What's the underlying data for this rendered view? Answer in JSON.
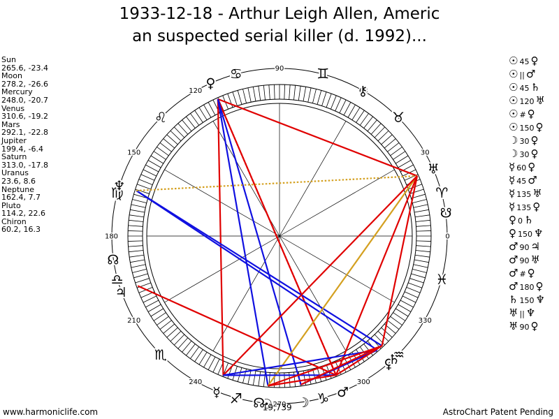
{
  "title": {
    "line1": "1933-12-18 - Arthur Leigh Allen, Americ",
    "line2": "an suspected serial killer (d. 1992)..."
  },
  "planets": [
    {
      "name": "Sun",
      "pos": "265.6, -23.4",
      "lon": 265.6,
      "glyph": "☉",
      "color": "#000000"
    },
    {
      "name": "Moon",
      "pos": "278.2, -26.6",
      "lon": 278.2,
      "glyph": "☽",
      "color": "#000000"
    },
    {
      "name": "Mercury",
      "pos": "248.0, -20.7",
      "lon": 248.0,
      "glyph": "☿",
      "color": "#000000"
    },
    {
      "name": "Venus",
      "pos": "310.6, -19.2",
      "lon": 310.6,
      "glyph": "♀",
      "color": "#000000"
    },
    {
      "name": "Mars",
      "pos": "292.1, -22.8",
      "lon": 292.1,
      "glyph": "♂",
      "color": "#000000"
    },
    {
      "name": "Jupiter",
      "pos": "199.4, -6.4",
      "lon": 199.4,
      "glyph": "♃",
      "color": "#000000"
    },
    {
      "name": "Saturn",
      "pos": "313.0, -17.8",
      "lon": 313.0,
      "glyph": "♄",
      "color": "#000000"
    },
    {
      "name": "Uranus",
      "pos": "23.6, 8.6",
      "lon": 23.6,
      "glyph": "♅",
      "color": "#000000"
    },
    {
      "name": "Neptune",
      "pos": "162.4, 7.7",
      "lon": 162.4,
      "glyph": "♆",
      "color": "#000000"
    },
    {
      "name": "Pluto",
      "pos": "114.2, 22.6",
      "lon": 114.2,
      "glyph": "♀",
      "color": "#000000"
    },
    {
      "name": "Chiron",
      "pos": "60.2, 16.3",
      "lon": 60.2,
      "glyph": "⚷",
      "color": "#000000"
    }
  ],
  "zodiac": [
    {
      "glyph": "♈",
      "lon": 15
    },
    {
      "glyph": "♉",
      "lon": 45
    },
    {
      "glyph": "♊",
      "lon": 75
    },
    {
      "glyph": "♋",
      "lon": 105
    },
    {
      "glyph": "♌",
      "lon": 135
    },
    {
      "glyph": "♍",
      "lon": 165
    },
    {
      "glyph": "♎",
      "lon": 195
    },
    {
      "glyph": "♏",
      "lon": 225
    },
    {
      "glyph": "♐",
      "lon": 255
    },
    {
      "glyph": "♑",
      "lon": 285
    },
    {
      "glyph": "♒",
      "lon": 315
    },
    {
      "glyph": "♓",
      "lon": 345
    }
  ],
  "degree_labels": [
    {
      "text": "0",
      "lon": 0
    },
    {
      "text": "30",
      "lon": 30
    },
    {
      "text": "60",
      "lon": 60
    },
    {
      "text": "90",
      "lon": 90
    },
    {
      "text": "120",
      "lon": 120
    },
    {
      "text": "150",
      "lon": 150
    },
    {
      "text": "180",
      "lon": 180
    },
    {
      "text": "210",
      "lon": 210
    },
    {
      "text": "240",
      "lon": 240
    },
    {
      "text": "270",
      "lon": 270
    },
    {
      "text": "300",
      "lon": 300
    },
    {
      "text": "330",
      "lon": 330
    }
  ],
  "extra_points": [
    {
      "name": "north-node",
      "glyph": "☊",
      "lon": 188,
      "label": ""
    },
    {
      "name": "south-node",
      "glyph": "☋",
      "lon": 8,
      "label": ""
    },
    {
      "name": "part-of-fortune",
      "glyph": "☊",
      "lon": 263,
      "label": "19,739"
    }
  ],
  "aspect_lines": [
    {
      "from": "Pluto",
      "to": "Uranus",
      "color": "#e00000",
      "style": "solid"
    },
    {
      "from": "Pluto",
      "to": "Mercury",
      "color": "#e00000",
      "style": "solid"
    },
    {
      "from": "Pluto",
      "to": "Mars",
      "color": "#e00000",
      "style": "solid"
    },
    {
      "from": "Pluto",
      "to": "Mars",
      "color": "#e00000",
      "style": "dotted"
    },
    {
      "from": "Pluto",
      "to": "Moon",
      "color": "#1010e0",
      "style": "solid"
    },
    {
      "from": "Pluto",
      "to": "Sun",
      "color": "#1010e0",
      "style": "solid"
    },
    {
      "from": "Neptune",
      "to": "Venus",
      "color": "#1010e0",
      "style": "solid"
    },
    {
      "from": "Neptune",
      "to": "Saturn",
      "color": "#1010e0",
      "style": "solid"
    },
    {
      "from": "Neptune",
      "to": "Uranus",
      "color": "#d4a020",
      "style": "dotted"
    },
    {
      "from": "Uranus",
      "to": "Sun",
      "color": "#d4a020",
      "style": "solid"
    },
    {
      "from": "Uranus",
      "to": "Mercury",
      "color": "#e00000",
      "style": "solid"
    },
    {
      "from": "Uranus",
      "to": "Mars",
      "color": "#e00000",
      "style": "solid"
    },
    {
      "from": "Uranus",
      "to": "Saturn",
      "color": "#e00000",
      "style": "solid"
    },
    {
      "from": "Jupiter",
      "to": "Mars",
      "color": "#e00000",
      "style": "solid"
    },
    {
      "from": "Mercury",
      "to": "Venus",
      "color": "#1010e0",
      "style": "solid"
    },
    {
      "from": "Mercury",
      "to": "Mars",
      "color": "#1010e0",
      "style": "solid"
    },
    {
      "from": "Moon",
      "to": "Venus",
      "color": "#1010e0",
      "style": "solid"
    },
    {
      "from": "Sun",
      "to": "Mars",
      "color": "#e00000",
      "style": "solid"
    },
    {
      "from": "Sun",
      "to": "Saturn",
      "color": "#e00000",
      "style": "solid"
    },
    {
      "from": "Moon",
      "to": "Saturn",
      "color": "#e00000",
      "style": "solid"
    },
    {
      "from": "Mars",
      "to": "Saturn",
      "color": "#e00000",
      "style": "solid"
    }
  ],
  "aspects": [
    {
      "p1": "☉",
      "val": "45",
      "p2": "♀"
    },
    {
      "p1": "☉",
      "val": "||",
      "p2": "♂"
    },
    {
      "p1": "☉",
      "val": "45",
      "p2": "♄"
    },
    {
      "p1": "☉",
      "val": "120",
      "p2": "♅"
    },
    {
      "p1": "☉",
      "val": "#",
      "p2": "♀"
    },
    {
      "p1": "☉",
      "val": "150",
      "p2": "♀"
    },
    {
      "p1": "☽",
      "val": "30",
      "p2": "♀"
    },
    {
      "p1": "☽",
      "val": "30",
      "p2": "♀"
    },
    {
      "p1": "☿",
      "val": "60",
      "p2": "♀"
    },
    {
      "p1": "☿",
      "val": "45",
      "p2": "♂"
    },
    {
      "p1": "☿",
      "val": "135",
      "p2": "♅"
    },
    {
      "p1": "☿",
      "val": "135",
      "p2": "♀"
    },
    {
      "p1": "♀",
      "val": "0",
      "p2": "♄"
    },
    {
      "p1": "♀",
      "val": "150",
      "p2": "♆"
    },
    {
      "p1": "♂",
      "val": "90",
      "p2": "♃"
    },
    {
      "p1": "♂",
      "val": "90",
      "p2": "♅"
    },
    {
      "p1": "♂",
      "val": "#",
      "p2": "♀"
    },
    {
      "p1": "♂",
      "val": "180",
      "p2": "♀"
    },
    {
      "p1": "♄",
      "val": "150",
      "p2": "♆"
    },
    {
      "p1": "♅",
      "val": "||",
      "p2": "♆"
    },
    {
      "p1": "♅",
      "val": "90",
      "p2": "♀"
    }
  ],
  "footer": {
    "left": "www.harmoniclife.com",
    "right": "AstroChart Patent Pending"
  }
}
